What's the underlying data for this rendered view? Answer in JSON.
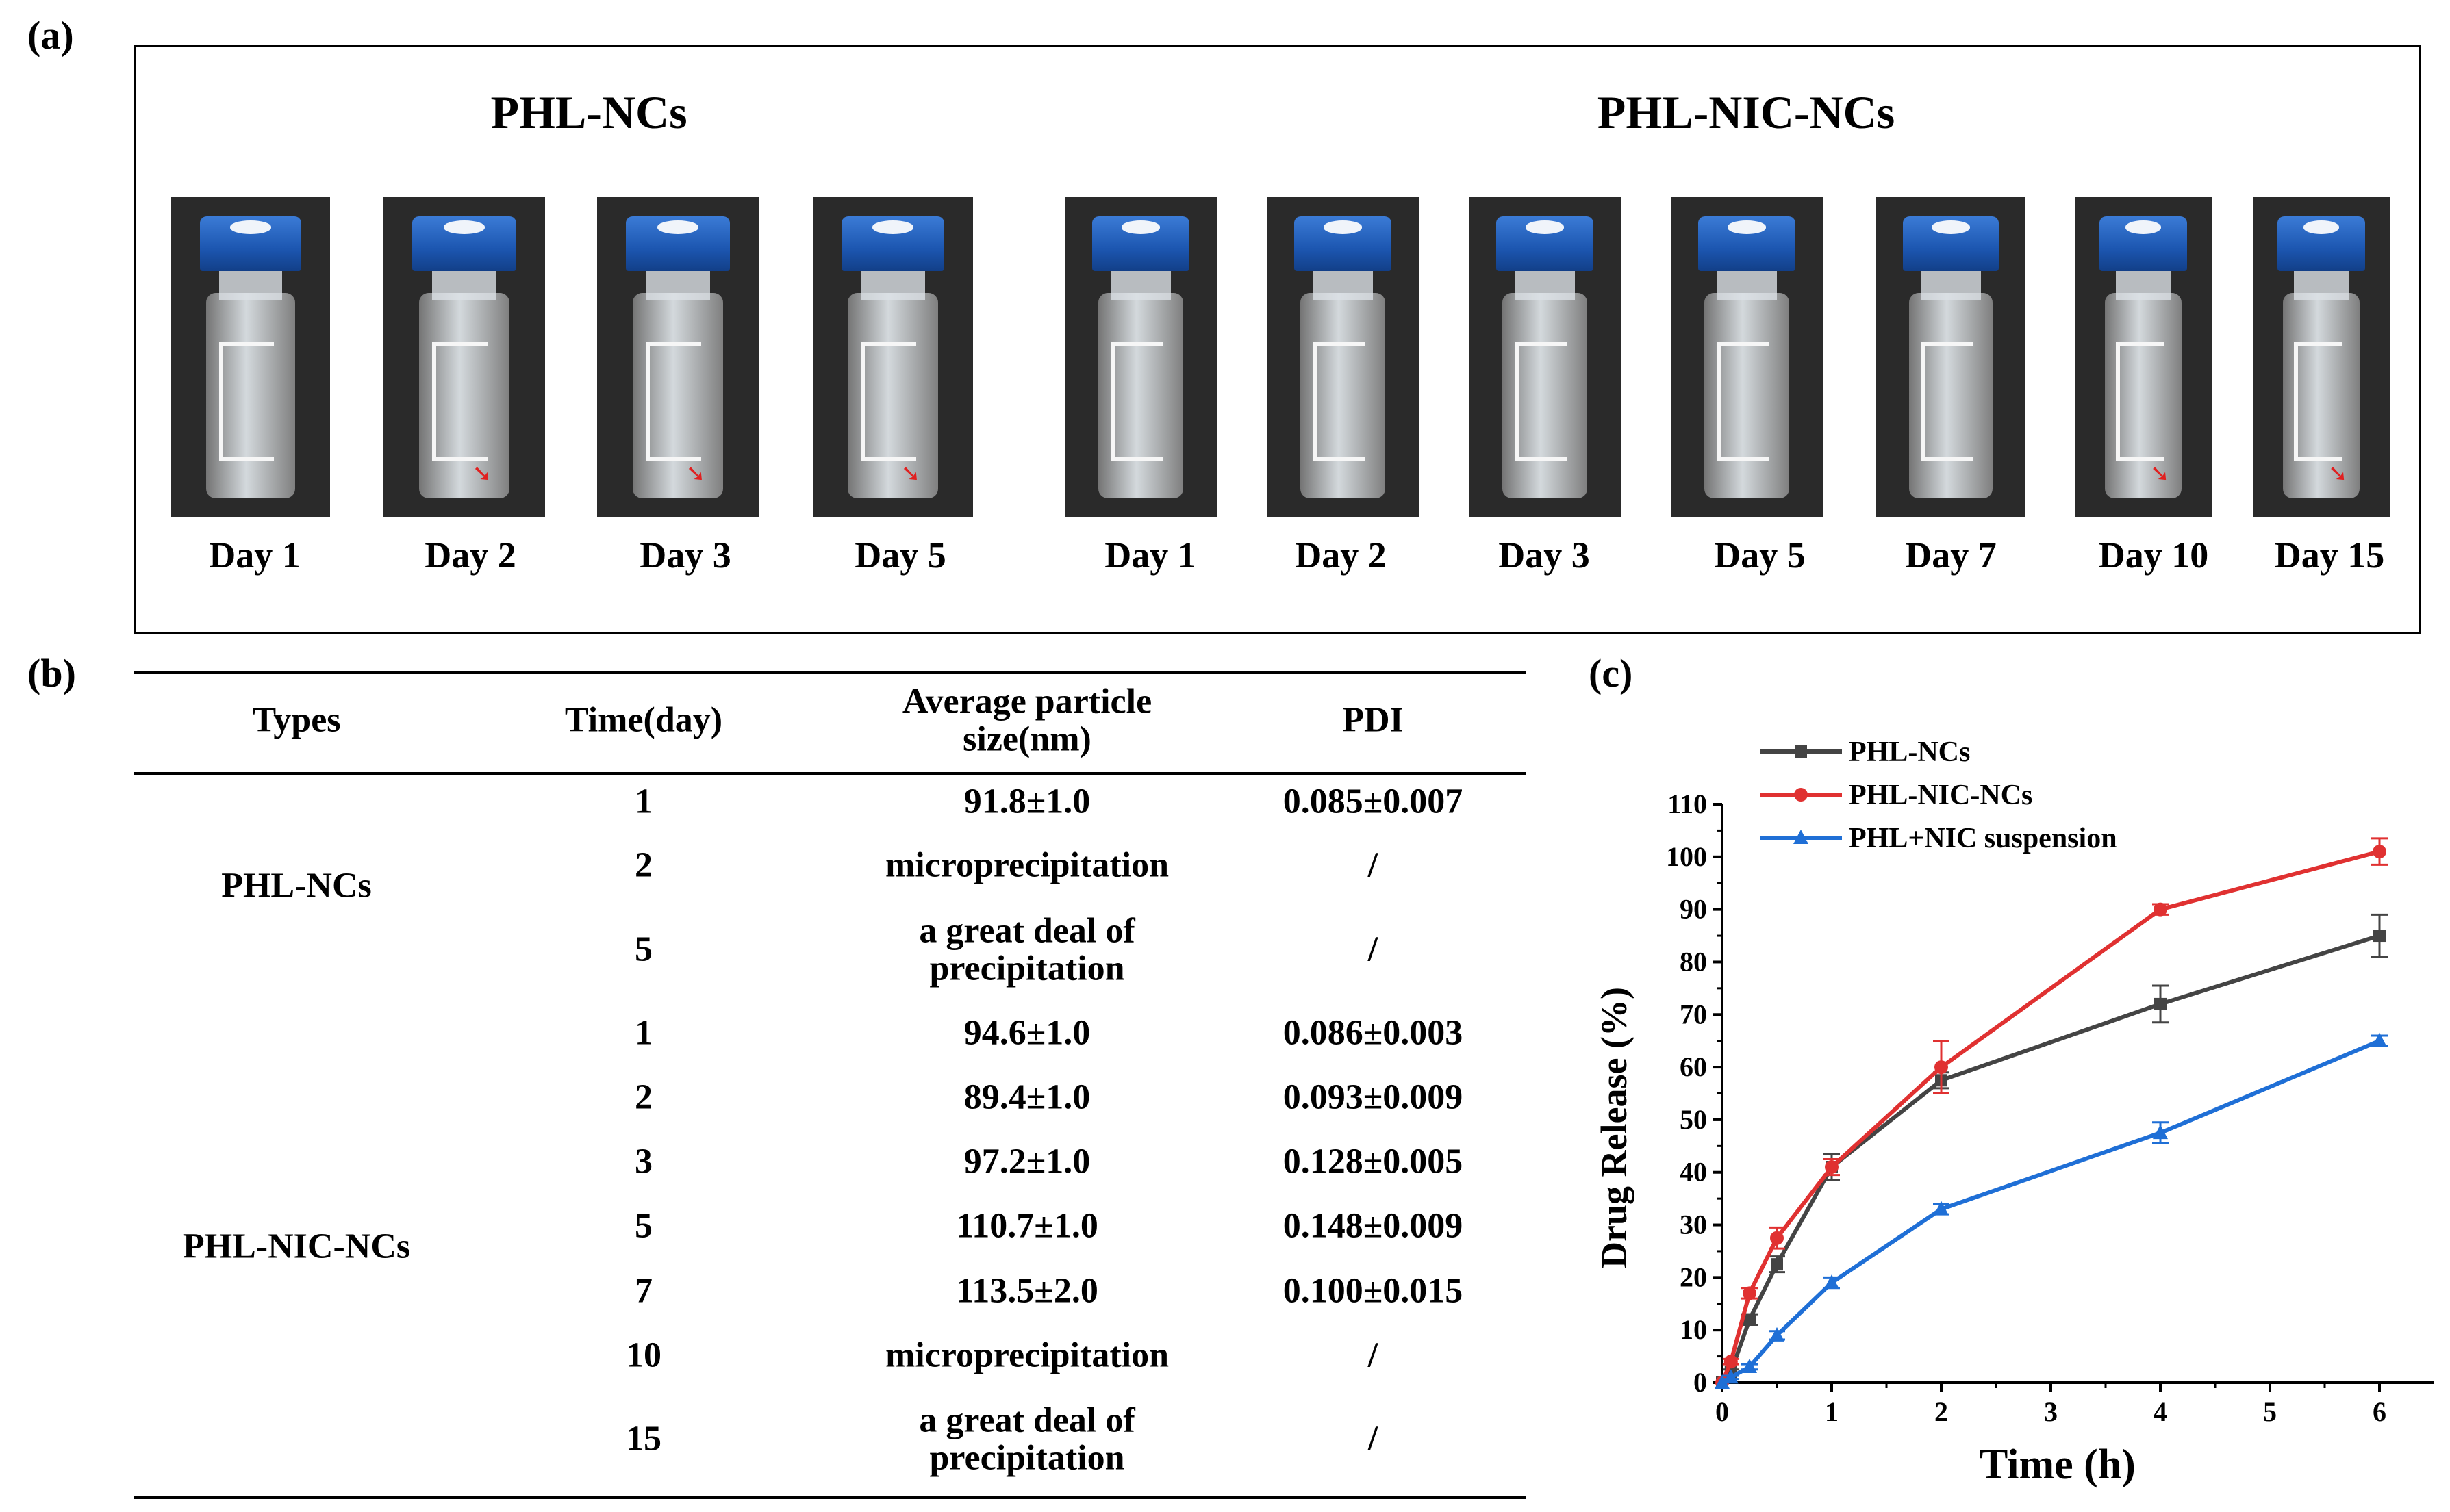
{
  "panel_labels": {
    "a": "(a)",
    "b": "(b)",
    "c": "(c)"
  },
  "panel_a": {
    "groups": [
      {
        "title": "PHL-NCs",
        "days": [
          "Day 1",
          "Day 2",
          "Day 3",
          "Day 5"
        ]
      },
      {
        "title": "PHL-NIC-NCs",
        "days": [
          "Day 1",
          "Day 2",
          "Day 3",
          "Day 5",
          "Day 7",
          "Day 10",
          "Day 15"
        ]
      }
    ]
  },
  "table": {
    "headers": [
      "Types",
      "Time(day)",
      "Average particle size(nm)",
      "PDI"
    ],
    "header_lines": {
      "size_line1": "Average particle",
      "size_line2": "size(nm)"
    },
    "groups": [
      {
        "type": "PHL-NCs",
        "rows": [
          {
            "time": "1",
            "size": "91.8±1.0",
            "pdi": "0.085±0.007"
          },
          {
            "time": "2",
            "size": "microprecipitation",
            "pdi": "/"
          },
          {
            "time": "5",
            "size_line1": "a great deal of",
            "size_line2": "precipitation",
            "pdi": "/"
          }
        ]
      },
      {
        "type": "PHL-NIC-NCs",
        "rows": [
          {
            "time": "1",
            "size": "94.6±1.0",
            "pdi": "0.086±0.003"
          },
          {
            "time": "2",
            "size": "89.4±1.0",
            "pdi": "0.093±0.009"
          },
          {
            "time": "3",
            "size": "97.2±1.0",
            "pdi": "0.128±0.005"
          },
          {
            "time": "5",
            "size": "110.7±1.0",
            "pdi": "0.148±0.009"
          },
          {
            "time": "7",
            "size": "113.5±2.0",
            "pdi": "0.100±0.015"
          },
          {
            "time": "10",
            "size": "microprecipitation",
            "pdi": "/"
          },
          {
            "time": "15",
            "size_line1": "a great deal of",
            "size_line2": "precipitation",
            "pdi": "/"
          }
        ]
      }
    ]
  },
  "chart_data": {
    "type": "line",
    "title": "",
    "xlabel": "Time (h)",
    "ylabel": "Drug Release (%)",
    "xlim": [
      0,
      6.5
    ],
    "ylim": [
      0,
      110
    ],
    "xticks": [
      0,
      1,
      2,
      3,
      4,
      5,
      6
    ],
    "yticks": [
      0,
      10,
      20,
      30,
      40,
      50,
      60,
      70,
      80,
      90,
      100,
      110
    ],
    "legend_position": "top-left",
    "series": [
      {
        "name": "PHL-NCs",
        "color": "#444444",
        "marker": "square",
        "x": [
          0,
          0.08,
          0.25,
          0.5,
          1,
          2,
          4,
          6
        ],
        "y": [
          0,
          2,
          12,
          22.5,
          41,
          57.5,
          72,
          85
        ],
        "err": [
          0,
          0.5,
          1,
          1.5,
          2.5,
          1.5,
          3.5,
          4
        ]
      },
      {
        "name": "PHL-NIC-NCs",
        "color": "#e03131",
        "marker": "circle",
        "x": [
          0,
          0.08,
          0.25,
          0.5,
          1,
          2,
          4,
          6
        ],
        "y": [
          0,
          4,
          17,
          27.5,
          41,
          60,
          90,
          101
        ],
        "err": [
          0,
          0.5,
          1,
          2,
          1.5,
          5,
          1,
          2.5
        ]
      },
      {
        "name": "PHL+NIC suspension",
        "color": "#1f6fd6",
        "marker": "triangle",
        "x": [
          0,
          0.08,
          0.25,
          0.5,
          1,
          2,
          4,
          6
        ],
        "y": [
          0,
          1,
          3,
          9,
          19,
          33,
          47.5,
          65
        ],
        "err": [
          0,
          0.3,
          0.5,
          0.8,
          1,
          1,
          2,
          1
        ]
      }
    ]
  }
}
